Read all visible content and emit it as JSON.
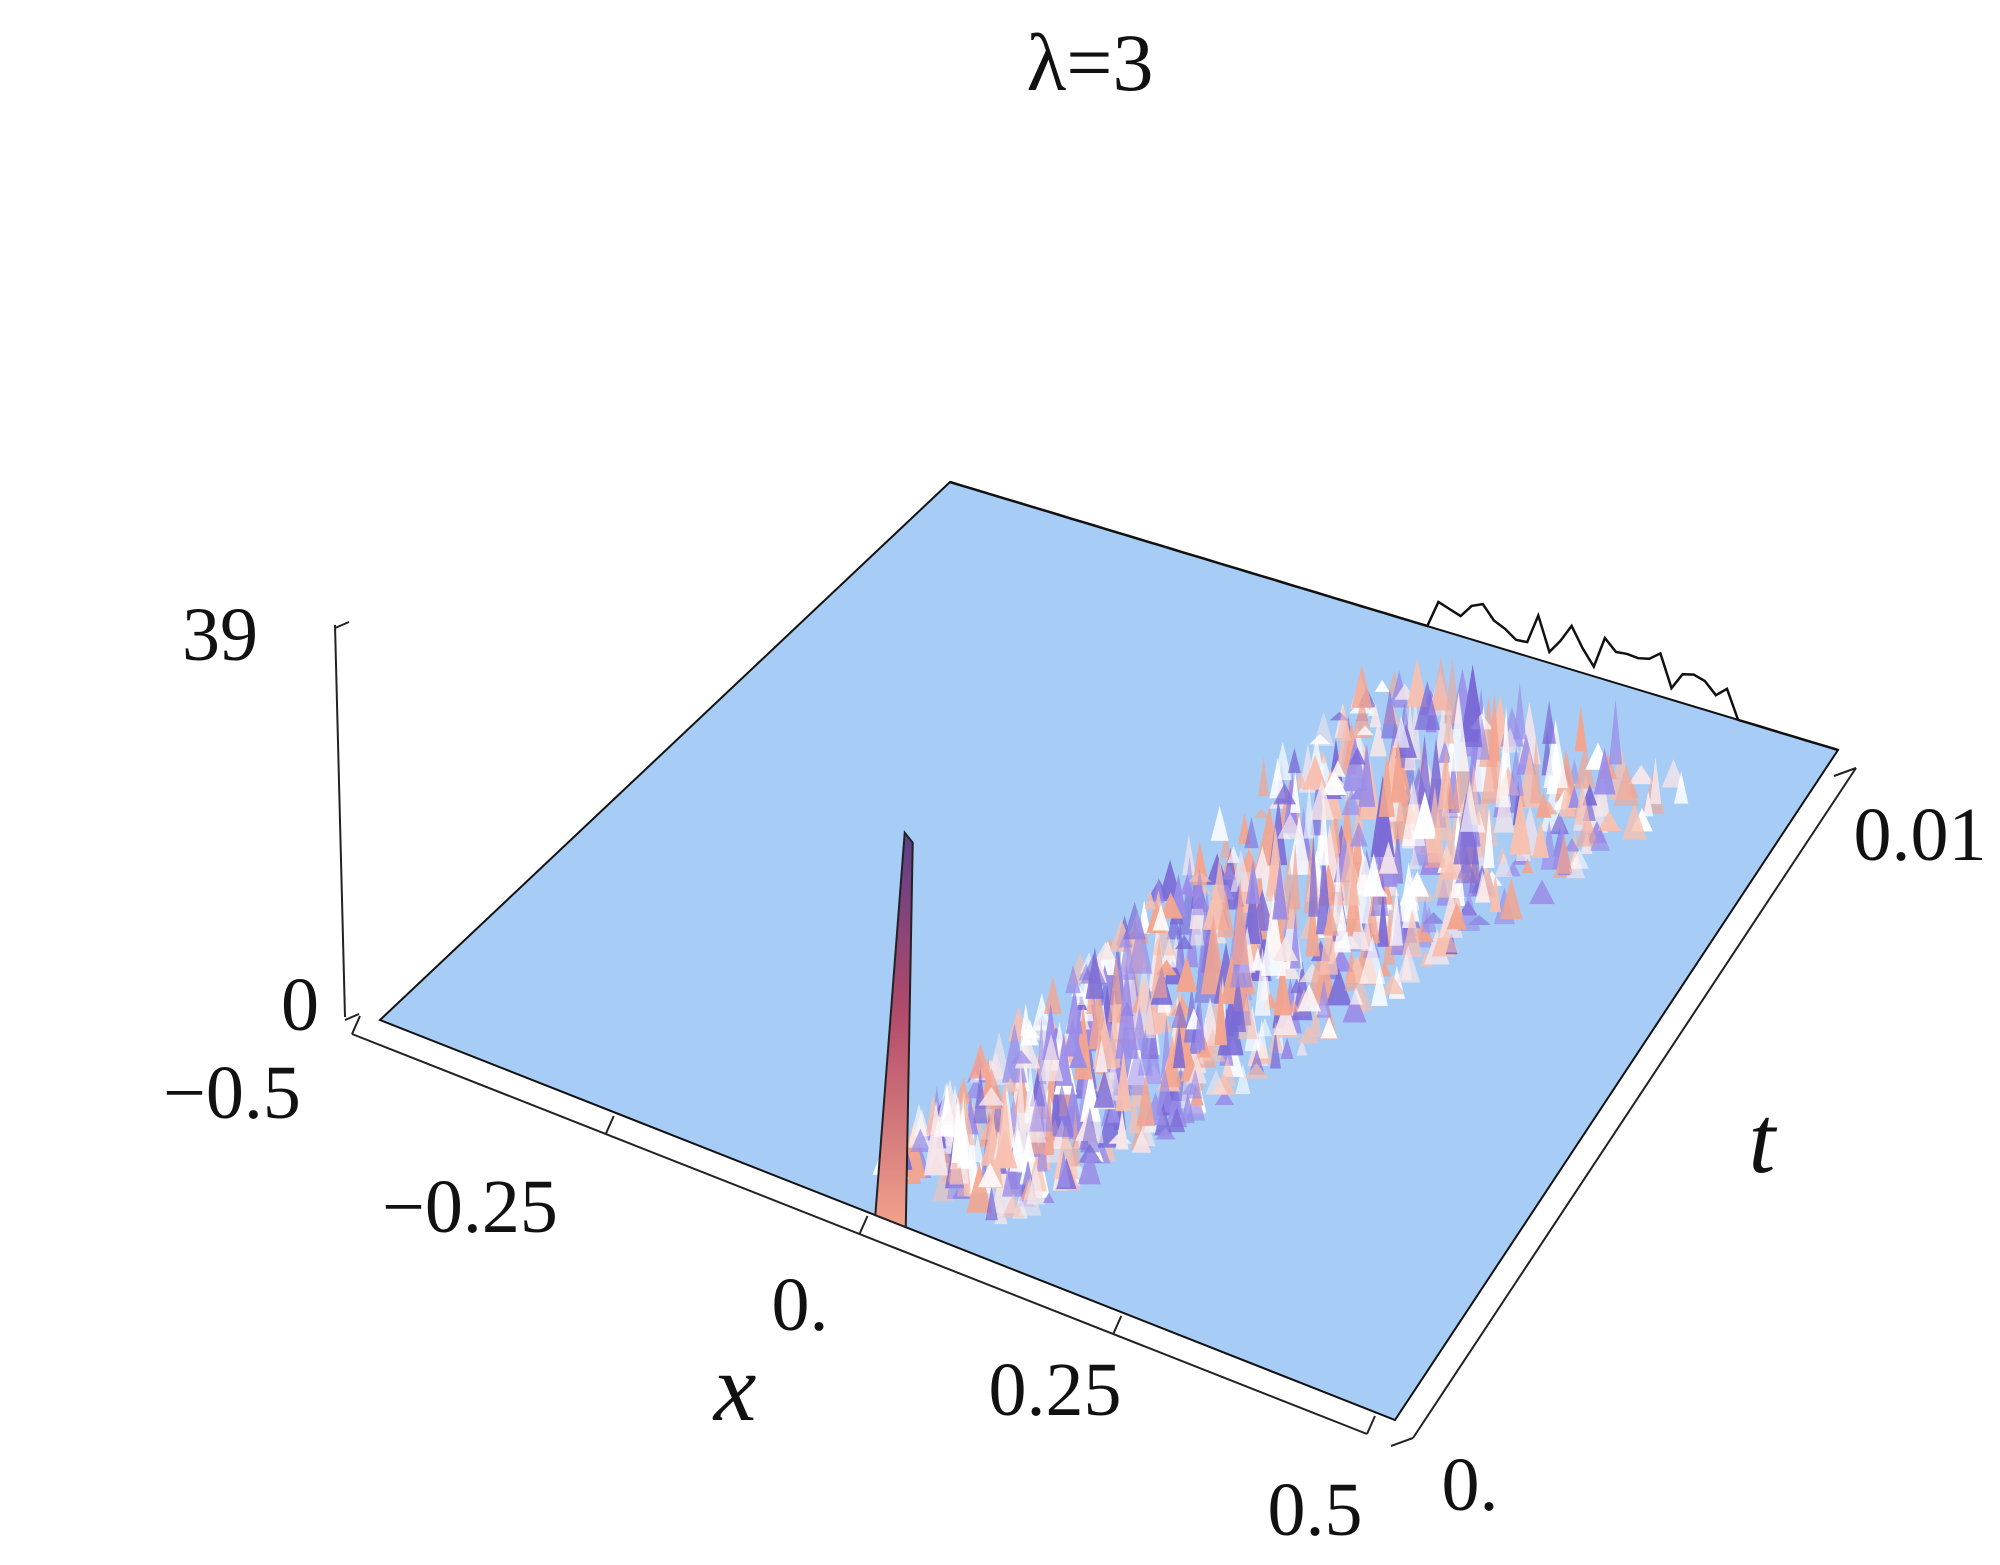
{
  "chart_data": {
    "type": "surface3d",
    "title": "λ=3",
    "xlabel": "x",
    "tlabel": "t",
    "x_range": [
      -0.5,
      0.5
    ],
    "t_range": [
      0,
      0.01
    ],
    "z_range": [
      0,
      39
    ],
    "x_ticks": [
      {
        "value": -0.5,
        "label": "−0.5"
      },
      {
        "value": -0.25,
        "label": "−0.25"
      },
      {
        "value": 0,
        "label": "0."
      },
      {
        "value": 0.25,
        "label": "0.25"
      },
      {
        "value": 0.5,
        "label": "0.5"
      }
    ],
    "t_ticks": [
      {
        "value": 0,
        "label": "0."
      },
      {
        "value": 0.01,
        "label": "0.01"
      }
    ],
    "z_ticks": [
      {
        "value": 0,
        "label": "0"
      },
      {
        "value": 39,
        "label": "39"
      }
    ],
    "features": {
      "initial_peak": {
        "x": 0.0,
        "t": 0.0,
        "height": 39
      },
      "spread_region": "turbulent oscillations spreading toward positive x as t increases",
      "surface_color": "#a7cdf6",
      "peak_colors": [
        "#f3a58f",
        "#7b6bd6",
        "#f6e6ea"
      ]
    }
  }
}
